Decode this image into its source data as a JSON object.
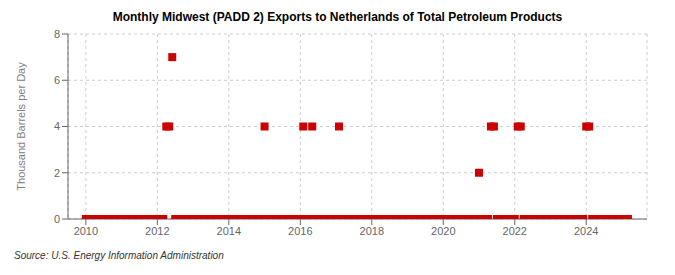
{
  "chart_data": {
    "type": "scatter",
    "title": "Monthly Midwest (PADD 2) Exports to Netherlands of Total Petroleum Products",
    "ylabel": "Thousand Barrels per Day",
    "annotations": [
      "Source: U.S. Energy Information Administration"
    ],
    "color": "#cc0000",
    "marker": "square",
    "grid": true,
    "xlim": [
      2009.5,
      2025.7
    ],
    "xticks": [
      2010,
      2012,
      2014,
      2016,
      2018,
      2020,
      2022,
      2024
    ],
    "ylim": [
      0,
      8
    ],
    "yticks": [
      0,
      2,
      4,
      6,
      8
    ],
    "x": [
      2010.0,
      2010.083,
      2010.167,
      2010.25,
      2010.333,
      2010.417,
      2010.5,
      2010.583,
      2010.667,
      2010.75,
      2010.833,
      2010.917,
      2011.0,
      2011.083,
      2011.167,
      2011.25,
      2011.333,
      2011.417,
      2011.5,
      2011.583,
      2011.667,
      2011.75,
      2011.833,
      2011.917,
      2012.0,
      2012.083,
      2012.167,
      2012.25,
      2012.333,
      2012.417,
      2012.5,
      2012.583,
      2012.667,
      2012.75,
      2012.833,
      2012.917,
      2013.0,
      2013.083,
      2013.167,
      2013.25,
      2013.333,
      2013.417,
      2013.5,
      2013.583,
      2013.667,
      2013.75,
      2013.833,
      2013.917,
      2014.0,
      2014.083,
      2014.167,
      2014.25,
      2014.333,
      2014.417,
      2014.5,
      2014.583,
      2014.667,
      2014.75,
      2014.833,
      2014.917,
      2015.0,
      2015.083,
      2015.167,
      2015.25,
      2015.333,
      2015.417,
      2015.5,
      2015.583,
      2015.667,
      2015.75,
      2015.833,
      2015.917,
      2016.0,
      2016.083,
      2016.167,
      2016.25,
      2016.333,
      2016.417,
      2016.5,
      2016.583,
      2016.667,
      2016.75,
      2016.833,
      2016.917,
      2017.0,
      2017.083,
      2017.167,
      2017.25,
      2017.333,
      2017.417,
      2017.5,
      2017.583,
      2017.667,
      2017.75,
      2017.833,
      2017.917,
      2018.0,
      2018.083,
      2018.167,
      2018.25,
      2018.333,
      2018.417,
      2018.5,
      2018.583,
      2018.667,
      2018.75,
      2018.833,
      2018.917,
      2019.0,
      2019.083,
      2019.167,
      2019.25,
      2019.333,
      2019.417,
      2019.5,
      2019.583,
      2019.667,
      2019.75,
      2019.833,
      2019.917,
      2020.0,
      2020.083,
      2020.167,
      2020.25,
      2020.333,
      2020.417,
      2020.5,
      2020.583,
      2020.667,
      2020.75,
      2020.833,
      2020.917,
      2021.0,
      2021.083,
      2021.167,
      2021.25,
      2021.333,
      2021.417,
      2021.5,
      2021.583,
      2021.667,
      2021.75,
      2021.833,
      2021.917,
      2022.0,
      2022.083,
      2022.167,
      2022.25,
      2022.333,
      2022.417,
      2022.5,
      2022.583,
      2022.667,
      2022.75,
      2022.833,
      2022.917,
      2023.0,
      2023.083,
      2023.167,
      2023.25,
      2023.333,
      2023.417,
      2023.5,
      2023.583,
      2023.667,
      2023.75,
      2023.833,
      2023.917,
      2024.0,
      2024.083,
      2024.167,
      2024.25,
      2024.333,
      2024.417,
      2024.5,
      2024.583,
      2024.667,
      2024.75,
      2024.833,
      2024.917,
      2025.0,
      2025.083,
      2025.167
    ],
    "values": [
      0,
      0,
      0,
      0,
      0,
      0,
      0,
      0,
      0,
      0,
      0,
      0,
      0,
      0,
      0,
      0,
      0,
      0,
      0,
      0,
      0,
      0,
      0,
      0,
      0,
      0,
      0,
      4,
      4,
      7,
      0,
      0,
      0,
      0,
      0,
      0,
      0,
      0,
      0,
      0,
      0,
      0,
      0,
      0,
      0,
      0,
      0,
      0,
      0,
      0,
      0,
      0,
      0,
      0,
      0,
      0,
      0,
      0,
      0,
      0,
      4,
      0,
      0,
      0,
      0,
      0,
      0,
      0,
      0,
      0,
      0,
      0,
      0,
      4,
      0,
      0,
      4,
      0,
      0,
      0,
      0,
      0,
      0,
      0,
      0,
      4,
      0,
      0,
      0,
      0,
      0,
      0,
      0,
      0,
      0,
      0,
      0,
      0,
      0,
      0,
      0,
      0,
      0,
      0,
      0,
      0,
      0,
      0,
      0,
      0,
      0,
      0,
      0,
      0,
      0,
      0,
      0,
      0,
      0,
      0,
      0,
      0,
      0,
      0,
      0,
      0,
      0,
      0,
      0,
      0,
      0,
      0,
      2,
      0,
      0,
      0,
      4,
      4,
      0,
      0,
      0,
      0,
      0,
      0,
      0,
      4,
      4,
      0,
      0,
      0,
      0,
      0,
      0,
      0,
      0,
      0,
      0,
      0,
      0,
      0,
      0,
      0,
      0,
      0,
      0,
      0,
      0,
      0,
      4,
      4,
      0,
      0,
      0,
      0,
      0,
      0,
      0,
      0,
      0,
      0,
      0,
      0,
      0
    ]
  }
}
